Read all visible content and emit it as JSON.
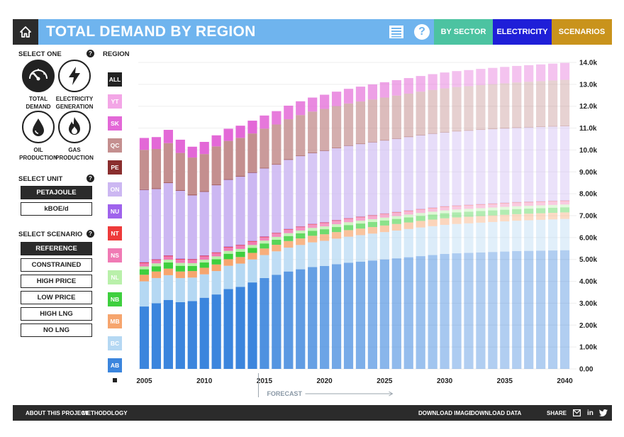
{
  "header": {
    "title": "TOTAL DEMAND BY REGION",
    "nav": [
      {
        "label": "BY SECTOR",
        "color": "#4cc3a1"
      },
      {
        "label": "ELECTRICITY",
        "color": "#1f1fd8"
      },
      {
        "label": "SCENARIOS",
        "color": "#c9931c"
      }
    ]
  },
  "left": {
    "select_one_label": "SELECT ONE",
    "measures": [
      {
        "label_line1": "TOTAL",
        "label_line2": "DEMAND",
        "icon": "gauge-icon",
        "active": true
      },
      {
        "label_line1": "ELECTRICITY",
        "label_line2": "GENERATION",
        "icon": "lightning-icon",
        "active": false
      },
      {
        "label_line1": "OIL",
        "label_line2": "PRODUCTION",
        "icon": "oil-drop-icon",
        "active": false
      },
      {
        "label_line1": "GAS",
        "label_line2": "PRODUCTION",
        "icon": "flame-icon",
        "active": false
      }
    ],
    "unit_label": "SELECT UNIT",
    "units": [
      {
        "label": "PETAJOULE",
        "active": true
      },
      {
        "label": "kBOE/d",
        "active": false
      }
    ],
    "scenario_label": "SELECT SCENARIO",
    "scenarios": [
      {
        "label": "REFERENCE",
        "active": true
      },
      {
        "label": "CONSTRAINED",
        "active": false
      },
      {
        "label": "HIGH PRICE",
        "active": false
      },
      {
        "label": "LOW PRICE",
        "active": false
      },
      {
        "label": "HIGH LNG",
        "active": false
      },
      {
        "label": "NO LNG",
        "active": false
      }
    ],
    "help_glyph": "?"
  },
  "regions": {
    "label": "REGION",
    "items": [
      {
        "code": "ALL",
        "color": "#222222"
      },
      {
        "code": "YT",
        "color": "#f3a6e6"
      },
      {
        "code": "SK",
        "color": "#e368d7"
      },
      {
        "code": "QC",
        "color": "#c48f8f"
      },
      {
        "code": "PE",
        "color": "#8a2e2e"
      },
      {
        "code": "ON",
        "color": "#ccb7f2"
      },
      {
        "code": "NU",
        "color": "#9f63ec"
      },
      {
        "code": "NT",
        "color": "#ee3a3a"
      },
      {
        "code": "NS",
        "color": "#f07ab4"
      },
      {
        "code": "NL",
        "color": "#b9f0aa"
      },
      {
        "code": "NB",
        "color": "#3ecf3e"
      },
      {
        "code": "MB",
        "color": "#f6a56e"
      },
      {
        "code": "BC",
        "color": "#b5d8f3"
      },
      {
        "code": "AB",
        "color": "#3b85dd"
      }
    ]
  },
  "chart_data": {
    "type": "bar",
    "stacked": true,
    "forecast_label": "FORECAST",
    "forecast_start_year": 2015,
    "categories": [
      2005,
      2006,
      2007,
      2008,
      2009,
      2010,
      2011,
      2012,
      2013,
      2014,
      2015,
      2016,
      2017,
      2018,
      2019,
      2020,
      2021,
      2022,
      2023,
      2024,
      2025,
      2026,
      2027,
      2028,
      2029,
      2030,
      2031,
      2032,
      2033,
      2034,
      2035,
      2036,
      2037,
      2038,
      2039,
      2040
    ],
    "x_tick_labels": [
      "2005",
      "2010",
      "2015",
      "2020",
      "2025",
      "2030",
      "2035",
      "2040"
    ],
    "y_tick_labels": [
      "0.00",
      "1.00k",
      "2.00k",
      "3.00k",
      "4.00k",
      "5.00k",
      "6.00k",
      "7.00k",
      "8.00k",
      "9.00k",
      "10.0k",
      "11.0k",
      "12.0k",
      "13.0k",
      "14.0k"
    ],
    "ylim": [
      0,
      14000
    ],
    "grid": "horizontal",
    "series": [
      {
        "name": "AB",
        "color": "#3b85dd",
        "values": [
          2850,
          3000,
          3150,
          3050,
          3100,
          3250,
          3400,
          3650,
          3750,
          3950,
          4150,
          4300,
          4450,
          4550,
          4650,
          4700,
          4780,
          4850,
          4900,
          4950,
          5000,
          5050,
          5100,
          5150,
          5200,
          5250,
          5280,
          5300,
          5320,
          5340,
          5360,
          5380,
          5390,
          5400,
          5410,
          5420
        ]
      },
      {
        "name": "BC",
        "color": "#b5d8f3",
        "values": [
          1150,
          1150,
          1130,
          1100,
          1070,
          1070,
          1070,
          1060,
          1060,
          1050,
          1050,
          1070,
          1090,
          1110,
          1130,
          1150,
          1170,
          1190,
          1210,
          1230,
          1250,
          1270,
          1290,
          1310,
          1320,
          1330,
          1340,
          1350,
          1360,
          1370,
          1380,
          1390,
          1400,
          1410,
          1420,
          1430
        ]
      },
      {
        "name": "MB",
        "color": "#f6a56e",
        "values": [
          300,
          300,
          300,
          300,
          300,
          300,
          300,
          300,
          300,
          300,
          300,
          300,
          300,
          300,
          300,
          300,
          300,
          300,
          300,
          300,
          300,
          300,
          300,
          300,
          300,
          300,
          300,
          300,
          300,
          300,
          300,
          300,
          300,
          300,
          300,
          300
        ]
      },
      {
        "name": "NB",
        "color": "#3ecf3e",
        "values": [
          250,
          240,
          280,
          260,
          230,
          240,
          240,
          250,
          240,
          230,
          230,
          230,
          230,
          230,
          230,
          230,
          230,
          230,
          230,
          230,
          230,
          230,
          230,
          230,
          230,
          230,
          230,
          230,
          230,
          230,
          230,
          230,
          230,
          230,
          230,
          230
        ]
      },
      {
        "name": "NL",
        "color": "#b9f0aa",
        "values": [
          130,
          130,
          130,
          130,
          130,
          130,
          130,
          130,
          130,
          130,
          130,
          130,
          130,
          130,
          130,
          130,
          130,
          130,
          130,
          130,
          130,
          130,
          130,
          130,
          130,
          130,
          130,
          130,
          130,
          130,
          130,
          130,
          130,
          130,
          130,
          130
        ]
      },
      {
        "name": "NS",
        "color": "#f07ab4",
        "values": [
          150,
          150,
          150,
          150,
          150,
          150,
          150,
          150,
          150,
          150,
          150,
          150,
          150,
          150,
          150,
          150,
          150,
          150,
          150,
          150,
          150,
          150,
          150,
          150,
          150,
          150,
          150,
          150,
          150,
          150,
          150,
          150,
          150,
          150,
          150,
          150
        ]
      },
      {
        "name": "NT",
        "color": "#ee3a3a",
        "values": [
          30,
          30,
          30,
          30,
          30,
          30,
          30,
          30,
          30,
          30,
          30,
          30,
          30,
          30,
          30,
          30,
          30,
          30,
          30,
          30,
          30,
          30,
          30,
          30,
          30,
          30,
          30,
          30,
          30,
          30,
          30,
          30,
          30,
          30,
          30,
          30
        ]
      },
      {
        "name": "NU",
        "color": "#9f63ec",
        "values": [
          20,
          20,
          20,
          20,
          20,
          20,
          20,
          20,
          20,
          20,
          20,
          20,
          20,
          20,
          20,
          20,
          20,
          20,
          20,
          20,
          20,
          20,
          20,
          20,
          20,
          20,
          20,
          20,
          20,
          20,
          20,
          20,
          20,
          20,
          20,
          20
        ]
      },
      {
        "name": "ON",
        "color": "#ccb7f2",
        "values": [
          3300,
          3200,
          3300,
          3100,
          2900,
          2900,
          3050,
          3050,
          3100,
          3100,
          3100,
          3100,
          3150,
          3200,
          3220,
          3250,
          3270,
          3290,
          3300,
          3310,
          3320,
          3330,
          3340,
          3350,
          3360,
          3360,
          3370,
          3370,
          3380,
          3380,
          3380,
          3380,
          3380,
          3380,
          3380,
          3380
        ]
      },
      {
        "name": "PE",
        "color": "#8a2e2e",
        "values": [
          25,
          25,
          25,
          25,
          25,
          25,
          25,
          25,
          25,
          25,
          25,
          25,
          25,
          25,
          25,
          25,
          25,
          25,
          25,
          25,
          25,
          25,
          25,
          25,
          25,
          25,
          25,
          25,
          25,
          25,
          25,
          25,
          25,
          25,
          25,
          25
        ]
      },
      {
        "name": "QC",
        "color": "#c48f8f",
        "values": [
          1800,
          1800,
          1800,
          1700,
          1700,
          1700,
          1750,
          1750,
          1750,
          1770,
          1790,
          1810,
          1830,
          1850,
          1870,
          1890,
          1900,
          1910,
          1920,
          1930,
          1940,
          1950,
          1960,
          1970,
          1980,
          1990,
          2000,
          2010,
          2020,
          2030,
          2040,
          2050,
          2060,
          2070,
          2080,
          2090
        ]
      },
      {
        "name": "SK",
        "color": "#e368d7",
        "values": [
          545,
          545,
          605,
          605,
          495,
          555,
          505,
          555,
          555,
          585,
          600,
          610,
          620,
          630,
          640,
          650,
          660,
          670,
          680,
          690,
          700,
          705,
          710,
          715,
          720,
          725,
          730,
          735,
          740,
          745,
          750,
          755,
          760,
          765,
          770,
          775
        ]
      },
      {
        "name": "YT",
        "color": "#f3a6e6",
        "values": [
          0,
          0,
          0,
          0,
          0,
          0,
          0,
          0,
          0,
          0,
          0,
          0,
          0,
          0,
          0,
          0,
          0,
          0,
          0,
          0,
          0,
          0,
          0,
          0,
          0,
          0,
          0,
          0,
          0,
          0,
          0,
          0,
          0,
          0,
          0,
          0
        ]
      }
    ]
  },
  "footer": {
    "about": "ABOUT THIS PROJECT",
    "methodology": "METHODOLOGY",
    "download_image": "DOWNLOAD IMAGE",
    "download_data": "DOWNLOAD DATA",
    "share": "SHARE",
    "linkedin_glyph": "in"
  }
}
